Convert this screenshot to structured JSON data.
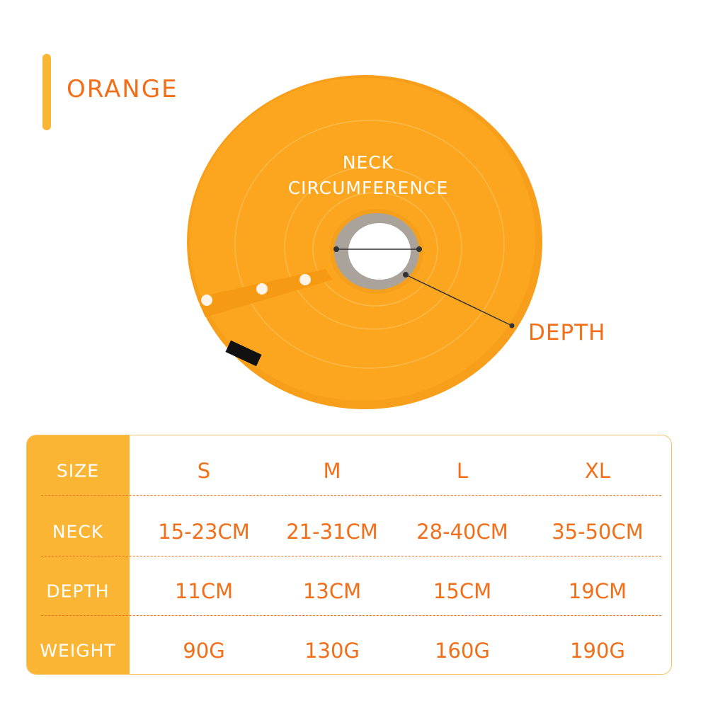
{
  "color_name": "ORANGE",
  "labels": {
    "neck_line1": "NECK",
    "neck_line2": "CIRCUMFERENCE",
    "depth": "DEPTH"
  },
  "colors": {
    "accent": "#fbb534",
    "text": "#f26f1a",
    "collar": "#fba61e"
  },
  "table": {
    "rows": [
      {
        "label": "SIZE",
        "values": [
          "S",
          "M",
          "L",
          "XL"
        ]
      },
      {
        "label": "NECK",
        "values": [
          "15-23CM",
          "21-31CM",
          "28-40CM",
          "35-50CM"
        ]
      },
      {
        "label": "DEPTH",
        "values": [
          "11CM",
          "13CM",
          "15CM",
          "19CM"
        ]
      },
      {
        "label": "WEIGHT",
        "values": [
          "90G",
          "130G",
          "160G",
          "190G"
        ]
      }
    ]
  }
}
